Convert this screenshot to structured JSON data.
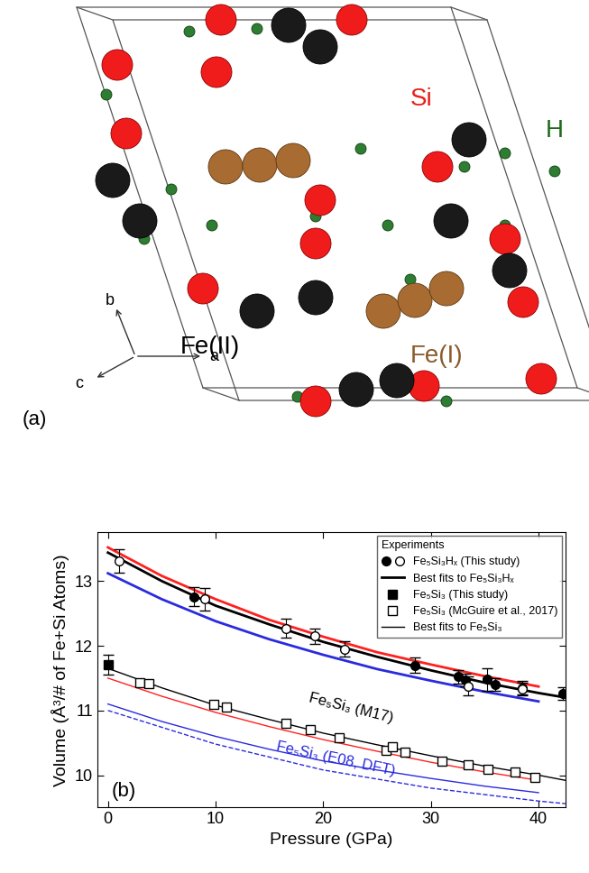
{
  "diagram": {
    "atom_labels": [
      {
        "text": "Si",
        "color": "#e8201c"
      },
      {
        "text": "H",
        "color": "#1d6b1d"
      },
      {
        "text": "Fe(II)",
        "color": "#000000"
      },
      {
        "text": "Fe(I)",
        "color": "#8a5a2b"
      }
    ],
    "axis_labels": [
      "a",
      "b",
      "c"
    ],
    "panel_label": "(a)"
  },
  "chart_data": {
    "type": "scatter",
    "x_label": "Pressure (GPa)",
    "y_label": "Volume (Å³/# of Fe+Si Atoms)",
    "xlim": [
      -1,
      42.5
    ],
    "ylim": [
      9.5,
      13.75
    ],
    "xticks": [
      0,
      10,
      20,
      30,
      40
    ],
    "yticks": [
      10,
      11,
      12,
      13
    ],
    "legend": "upper right",
    "legend_title": "Experiments",
    "annotations": [
      {
        "text": "(b)",
        "color": "#000000"
      },
      {
        "text": "Fe₅Si₃ (M17)",
        "color": "#000000"
      },
      {
        "text": "Fe₅Si₃ (E08, DFT)",
        "color": "#2a2ae0"
      }
    ],
    "series": [
      {
        "name": "Fe₅Si₃Hₓ (This study)",
        "type": "scatter",
        "color": "#000000",
        "marker": "circle",
        "x": [
          8,
          28.5,
          32.5,
          33.2,
          35.2,
          36,
          38.5,
          42.3
        ],
        "values": [
          12.76,
          11.7,
          11.52,
          11.47,
          11.48,
          11.4,
          11.35,
          11.26
        ],
        "error": [
          0.15,
          0.12,
          0.1,
          0.1,
          0.17,
          0.1,
          0.1,
          0.1
        ]
      },
      {
        "name": "Fe₅Si₃Hₓ (This study)",
        "type": "scatter",
        "color": "#000000",
        "marker": "open-circle",
        "x": [
          1,
          9,
          16.5,
          19.2,
          22,
          33.5,
          38.5
        ],
        "values": [
          13.31,
          12.72,
          12.27,
          12.15,
          11.95,
          11.38,
          11.33
        ],
        "error": [
          0.18,
          0.17,
          0.15,
          0.12,
          0.12,
          0.15,
          0.1
        ]
      },
      {
        "name": "Best fits to Fe₅Si₃Hₓ",
        "type": "line",
        "color": "#000000",
        "line_style": "solid",
        "x": [
          0,
          5,
          10,
          15,
          20,
          25,
          30,
          35,
          40,
          42.5
        ],
        "values": [
          13.44,
          13.0,
          12.62,
          12.33,
          12.06,
          11.83,
          11.62,
          11.43,
          11.27,
          11.2
        ]
      },
      {
        "type": "line",
        "color": "#ff2020",
        "line_style": "solid",
        "x": [
          0,
          5,
          10,
          15,
          20,
          25,
          30,
          35,
          40
        ],
        "values": [
          13.52,
          13.08,
          12.72,
          12.4,
          12.14,
          11.9,
          11.71,
          11.53,
          11.37
        ]
      },
      {
        "type": "line",
        "color": "#2a2ae0",
        "line_style": "solid",
        "x": [
          0,
          5,
          10,
          15,
          20,
          25,
          30,
          35,
          40
        ],
        "values": [
          13.12,
          12.72,
          12.38,
          12.1,
          11.86,
          11.64,
          11.46,
          11.29,
          11.14
        ]
      },
      {
        "name": "Fe₅Si₃ (This study)",
        "type": "scatter",
        "color": "#000000",
        "marker": "square",
        "x": [
          0
        ],
        "values": [
          11.71
        ],
        "error": [
          0.15
        ]
      },
      {
        "name": "Fe₅Si₃ (McGuire et al., 2017)",
        "type": "scatter",
        "color": "#000000",
        "marker": "open-square",
        "x": [
          3,
          3.8,
          9.8,
          11,
          16.5,
          18.8,
          21.5,
          25.8,
          26.4,
          27.6,
          31,
          33.5,
          35.3,
          37.8,
          39.7
        ],
        "values": [
          11.43,
          11.41,
          11.1,
          11.05,
          10.8,
          10.71,
          10.58,
          10.39,
          10.44,
          10.35,
          10.22,
          10.16,
          10.09,
          10.05,
          9.97
        ]
      },
      {
        "name": "Best fits to Fe₅Si₃",
        "type": "line",
        "color": "#000000",
        "line_style": "solid",
        "x": [
          0,
          5,
          10,
          15,
          20,
          25,
          30,
          35,
          40,
          42.5
        ],
        "values": [
          11.65,
          11.35,
          11.08,
          10.86,
          10.65,
          10.47,
          10.3,
          10.14,
          10.0,
          9.92
        ]
      },
      {
        "type": "line",
        "color": "#ff2020",
        "line_style": "solid",
        "x": [
          0,
          5,
          10,
          15,
          20,
          25,
          30,
          35,
          40
        ],
        "values": [
          11.5,
          11.22,
          10.97,
          10.75,
          10.55,
          10.37,
          10.2,
          10.05,
          9.92
        ]
      },
      {
        "type": "line",
        "color": "#2a2ae0",
        "line_style": "solid",
        "x": [
          0,
          5,
          10,
          15,
          20,
          25,
          30,
          35,
          40
        ],
        "values": [
          11.1,
          10.83,
          10.6,
          10.4,
          10.22,
          10.08,
          9.95,
          9.83,
          9.73
        ]
      },
      {
        "type": "line",
        "color": "#2a2ae0",
        "line_style": "dashed",
        "x": [
          0,
          10,
          20,
          30,
          40,
          42.5
        ],
        "values": [
          11.0,
          10.48,
          10.08,
          9.8,
          9.6,
          9.56
        ]
      }
    ]
  }
}
